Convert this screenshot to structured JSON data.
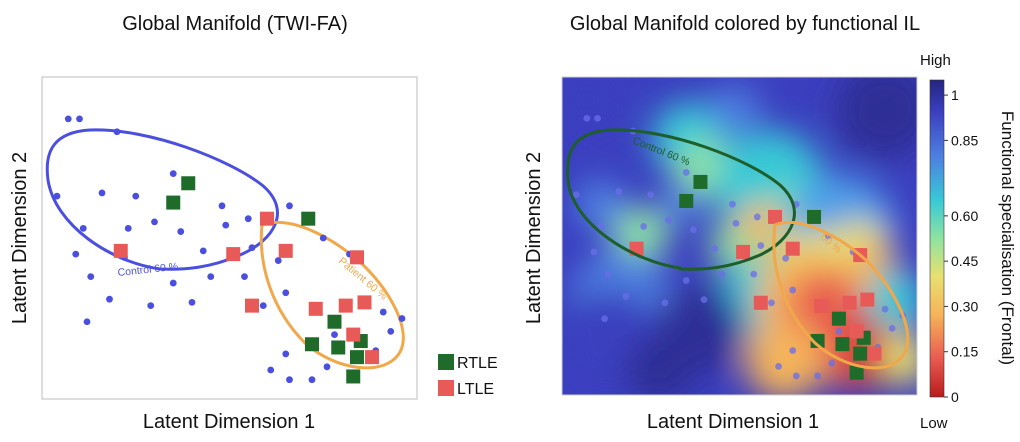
{
  "chart_data": [
    {
      "type": "scatter",
      "title": "Global Manifold (TWI-FA)",
      "xlabel": "Latent Dimension 1",
      "ylabel": "Latent Dimension 2",
      "xlim": [
        0,
        10
      ],
      "ylim": [
        0,
        10
      ],
      "grid": false,
      "legend_position": "bottom-right",
      "series": [
        {
          "name": "Control",
          "marker": "circle",
          "color": "#4b4fe0",
          "points": [
            [
              0.7,
              8.7
            ],
            [
              1.0,
              8.7
            ],
            [
              2.0,
              8.3
            ],
            [
              3.5,
              7.0
            ],
            [
              0.4,
              6.3
            ],
            [
              1.6,
              6.4
            ],
            [
              2.5,
              6.3
            ],
            [
              4.8,
              6.0
            ],
            [
              1.1,
              5.3
            ],
            [
              2.3,
              5.3
            ],
            [
              3.0,
              5.5
            ],
            [
              3.7,
              5.2
            ],
            [
              4.9,
              5.4
            ],
            [
              5.5,
              5.6
            ],
            [
              0.9,
              4.5
            ],
            [
              2.2,
              4.4
            ],
            [
              4.3,
              4.6
            ],
            [
              5.6,
              4.7
            ],
            [
              1.3,
              3.8
            ],
            [
              3.5,
              3.6
            ],
            [
              4.5,
              3.8
            ],
            [
              1.8,
              3.1
            ],
            [
              2.9,
              2.9
            ],
            [
              4.0,
              3.0
            ],
            [
              1.2,
              2.4
            ],
            [
              6.6,
              6.0
            ],
            [
              7.1,
              5.6
            ],
            [
              7.5,
              5.0
            ],
            [
              8.2,
              4.5
            ],
            [
              8.6,
              3.0
            ],
            [
              9.1,
              2.7
            ],
            [
              9.3,
              2.1
            ],
            [
              9.6,
              2.5
            ],
            [
              7.8,
              2.0
            ],
            [
              8.9,
              1.5
            ],
            [
              6.5,
              1.4
            ],
            [
              6.1,
              0.9
            ],
            [
              6.6,
              0.6
            ],
            [
              7.2,
              0.6
            ],
            [
              7.6,
              1.0
            ],
            [
              8.3,
              0.7
            ],
            [
              5.9,
              2.9
            ],
            [
              6.5,
              3.3
            ],
            [
              5.4,
              3.8
            ],
            [
              6.3,
              4.3
            ]
          ]
        },
        {
          "name": "RTLE",
          "marker": "square",
          "color": "#1e6b2a",
          "points": [
            [
              3.5,
              6.1
            ],
            [
              3.9,
              6.7
            ],
            [
              7.1,
              5.6
            ],
            [
              7.8,
              2.4
            ],
            [
              7.2,
              1.7
            ],
            [
              7.9,
              1.6
            ],
            [
              8.5,
              1.8
            ],
            [
              8.3,
              0.7
            ],
            [
              8.4,
              1.3
            ]
          ]
        },
        {
          "name": "LTLE",
          "marker": "square",
          "color": "#e85a57",
          "points": [
            [
              2.1,
              4.6
            ],
            [
              5.1,
              4.5
            ],
            [
              6.0,
              5.6
            ],
            [
              6.5,
              4.6
            ],
            [
              8.4,
              4.4
            ],
            [
              5.6,
              2.9
            ],
            [
              7.3,
              2.8
            ],
            [
              8.1,
              2.9
            ],
            [
              8.3,
              2.0
            ],
            [
              8.8,
              1.3
            ],
            [
              8.6,
              3.0
            ]
          ]
        }
      ],
      "contours": [
        {
          "label": "Control 60 %",
          "color": "#4b4fe0"
        },
        {
          "label": "Patient 60 %",
          "color": "#f0a84b"
        }
      ],
      "legend": [
        "RTLE",
        "LTLE"
      ]
    },
    {
      "type": "heatmap",
      "title": "Global Manifold colored by functional IL",
      "xlabel": "Latent Dimension 1",
      "ylabel": "Latent Dimension 2",
      "xlim": [
        0,
        10
      ],
      "ylim": [
        0,
        10
      ],
      "colorbar": {
        "label": "Functional specialisation (Frontal)",
        "range": [
          0,
          1.05
        ],
        "ticks": [
          "1",
          "0.85",
          "0.60",
          "0.45",
          "0.30",
          "0.15",
          "0"
        ],
        "tick_values": [
          1,
          0.85,
          0.6,
          0.45,
          0.3,
          0.15,
          0
        ],
        "top_label": "High",
        "bottom_label": "Low",
        "colormap": "turbo-reversed"
      },
      "contours": [
        {
          "label": "Control 60 %",
          "color": "#1e5e2a"
        },
        {
          "label": "60 %",
          "color": "#f0a84b"
        }
      ]
    }
  ]
}
